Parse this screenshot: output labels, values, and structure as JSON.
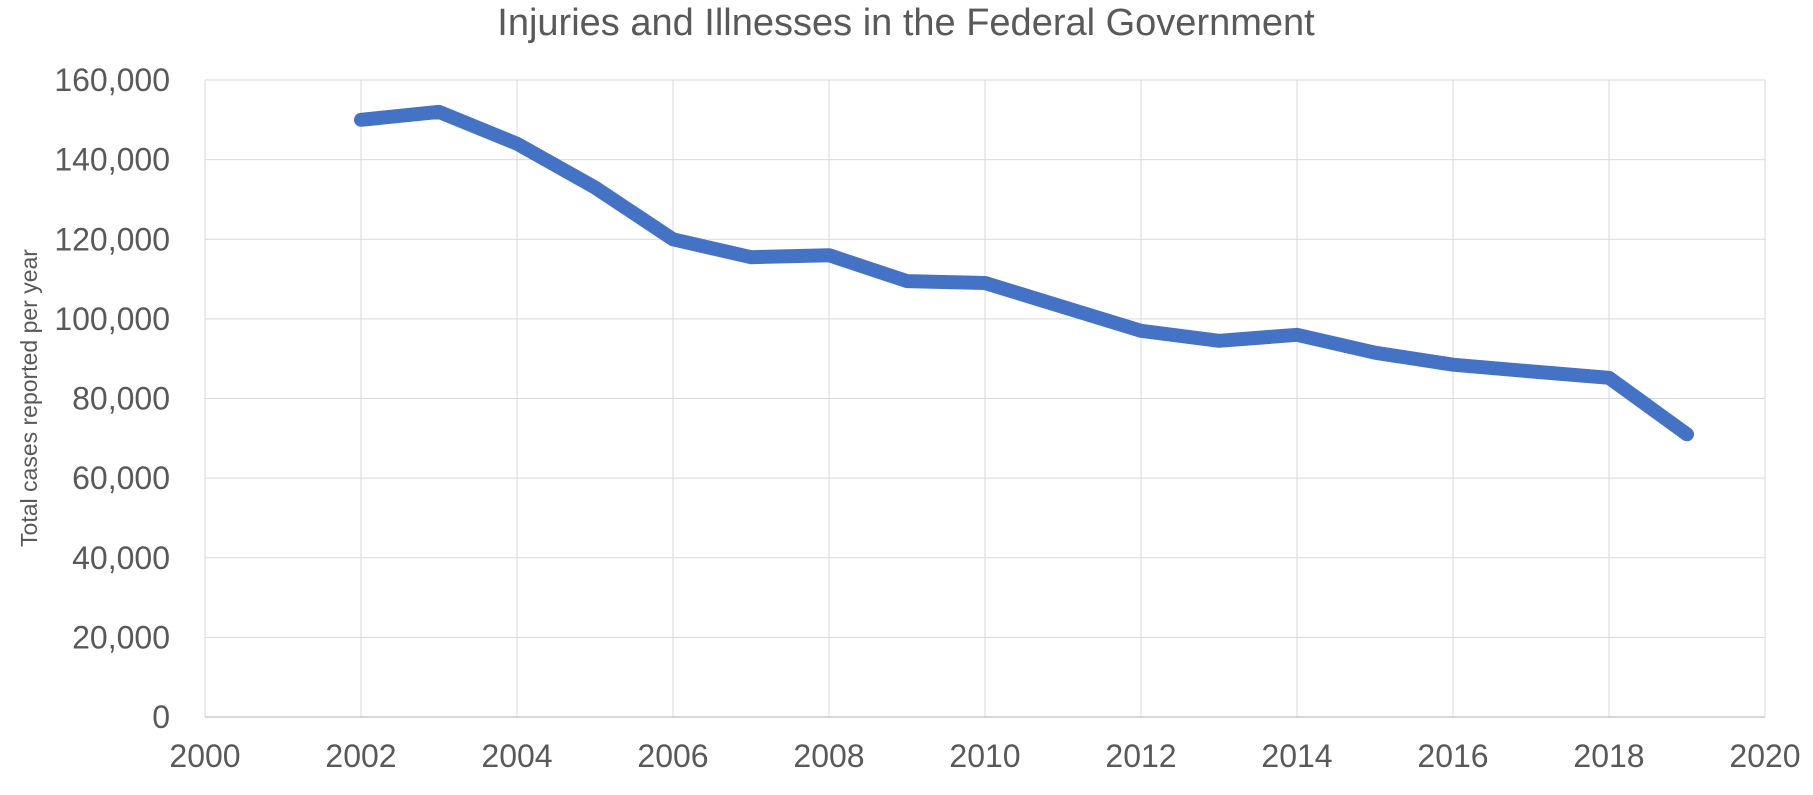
{
  "chart_data": {
    "type": "line",
    "title": "Injuries and Illnesses in the Federal Government",
    "xlabel": "",
    "ylabel": "Total cases reported per year",
    "xlim": [
      2000,
      2020
    ],
    "ylim": [
      0,
      160000
    ],
    "x_ticks": [
      2000,
      2002,
      2004,
      2006,
      2008,
      2010,
      2012,
      2014,
      2016,
      2018,
      2020
    ],
    "y_ticks": [
      0,
      20000,
      40000,
      60000,
      80000,
      100000,
      120000,
      140000,
      160000
    ],
    "x_tick_labels": [
      "2000",
      "2002",
      "2004",
      "2006",
      "2008",
      "2010",
      "2012",
      "2014",
      "2016",
      "2018",
      "2020"
    ],
    "y_tick_labels": [
      "0",
      "20,000",
      "40,000",
      "60,000",
      "80,000",
      "100,000",
      "120,000",
      "140,000",
      "160,000"
    ],
    "grid": true,
    "legend": "none",
    "colors": {
      "series": "#4472c4",
      "grid": "#d9d9d9",
      "text": "#595959"
    },
    "series": [
      {
        "name": "Total cases reported per year",
        "x": [
          2002,
          2003,
          2004,
          2005,
          2006,
          2007,
          2008,
          2009,
          2010,
          2011,
          2012,
          2013,
          2014,
          2015,
          2016,
          2017,
          2018,
          2019
        ],
        "values": [
          150000,
          152000,
          144000,
          133000,
          120000,
          115500,
          116000,
          109500,
          109000,
          103000,
          97000,
          94500,
          96000,
          91500,
          88500,
          86800,
          85200,
          71000
        ]
      }
    ]
  }
}
